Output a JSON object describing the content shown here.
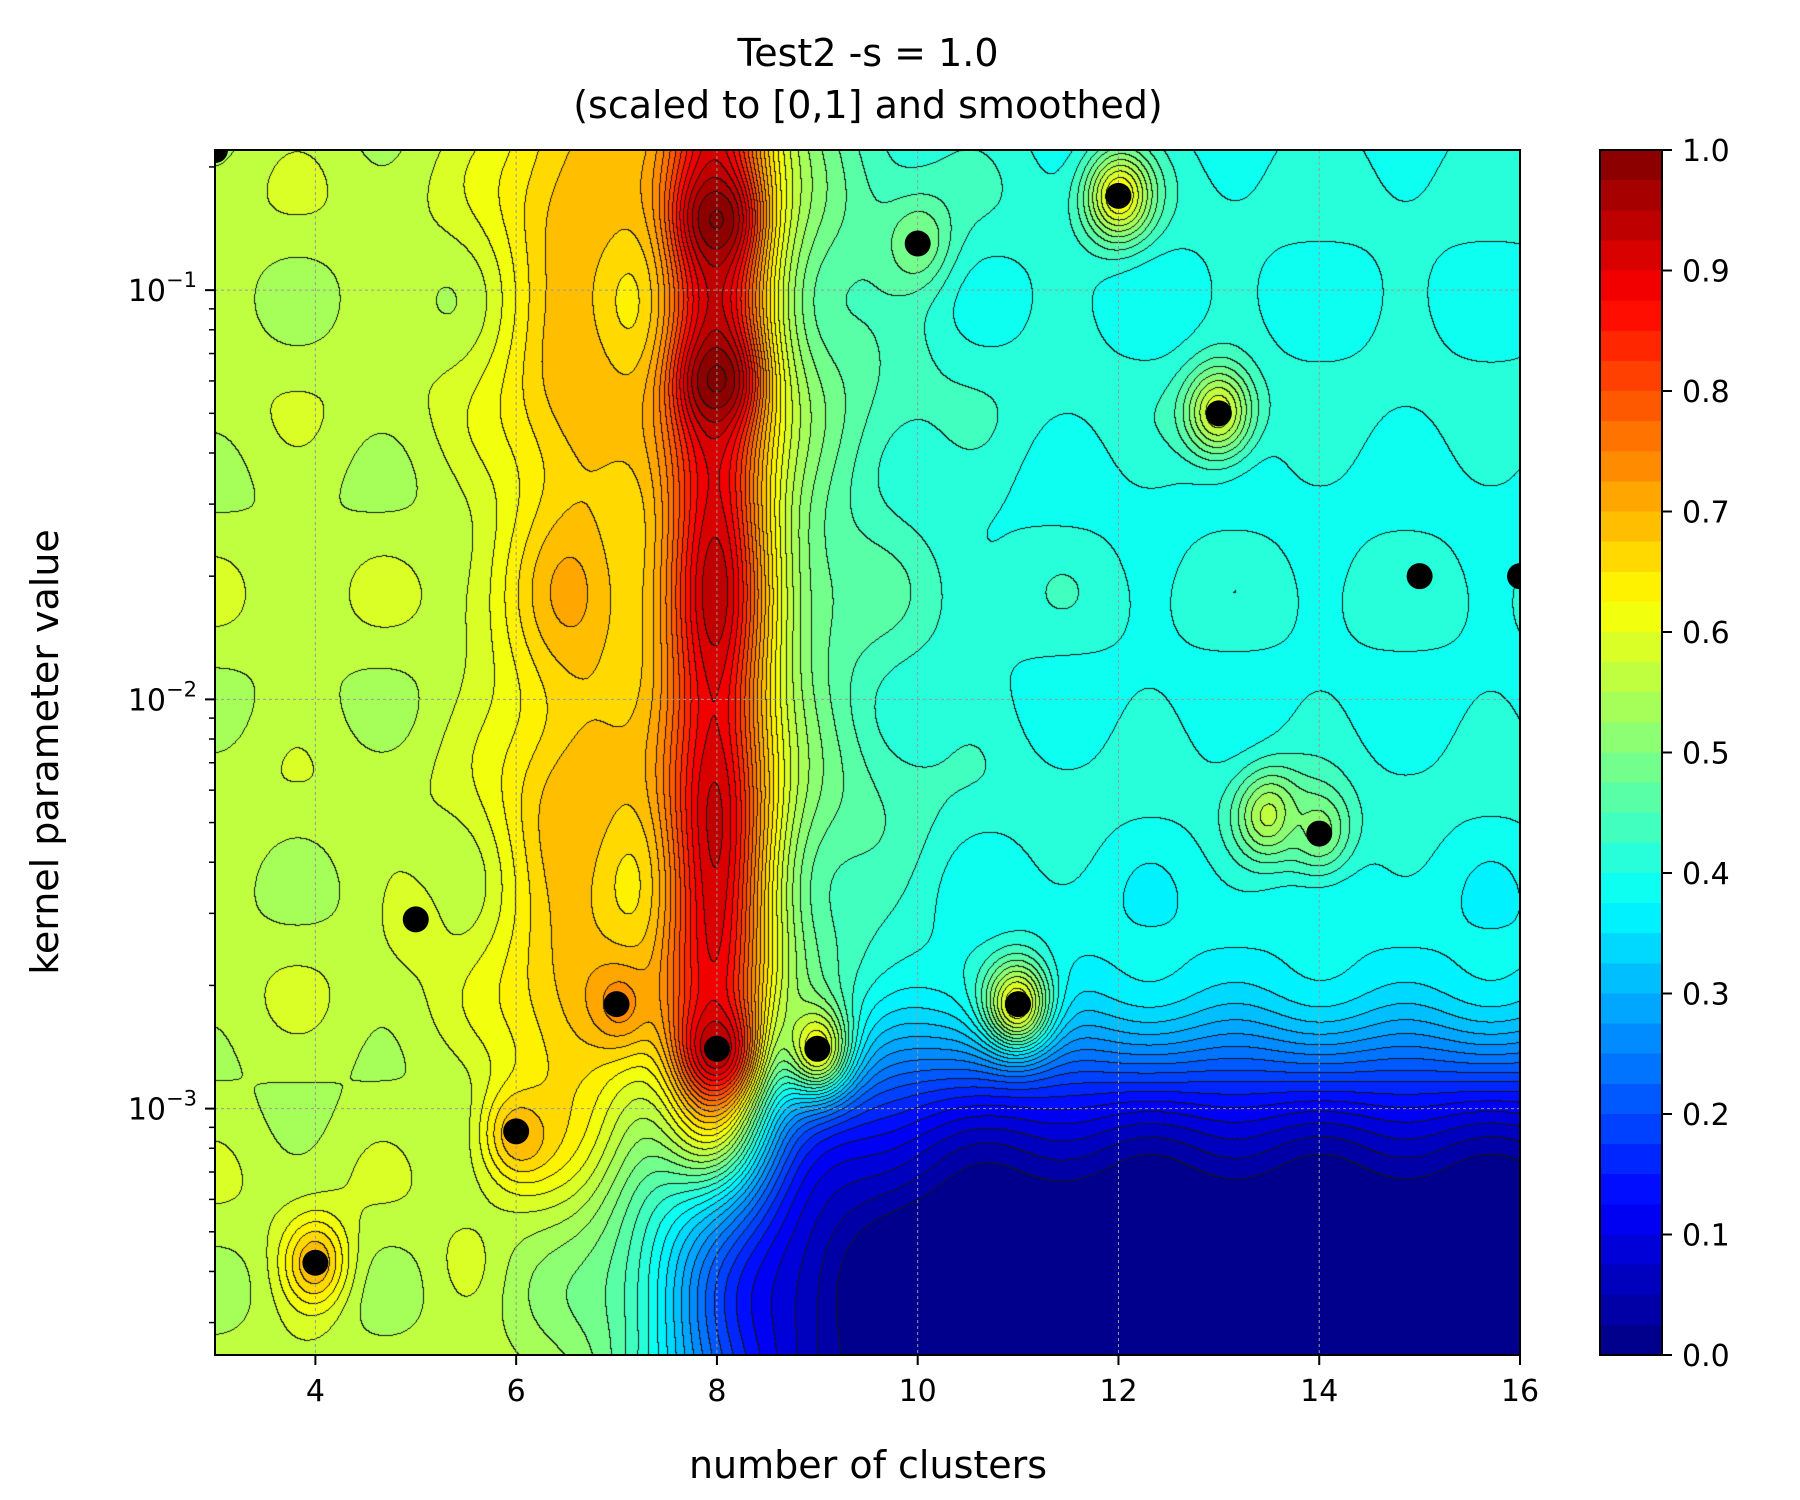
{
  "chart_data": {
    "type": "heatmap",
    "title": "Test2 -s = 1.0",
    "subtitle": "(scaled to [0,1] and smoothed)",
    "xlabel": "number of clusters",
    "ylabel": "kernel parameter value",
    "xlim": [
      3,
      16
    ],
    "ylim": [
      0.00025,
      0.22
    ],
    "y_scale": "log",
    "grid": true,
    "colormap": "jet",
    "x_ticks": [
      {
        "value": 4,
        "label": "4"
      },
      {
        "value": 6,
        "label": "6"
      },
      {
        "value": 8,
        "label": "8"
      },
      {
        "value": 10,
        "label": "10"
      },
      {
        "value": 12,
        "label": "12"
      },
      {
        "value": 14,
        "label": "14"
      },
      {
        "value": 16,
        "label": "16"
      }
    ],
    "y_ticks": [
      {
        "value": 0.1,
        "base": "10",
        "exp": "−1"
      },
      {
        "value": 0.01,
        "base": "10",
        "exp": "−2"
      },
      {
        "value": 0.001,
        "base": "10",
        "exp": "−3"
      }
    ],
    "colorbar": {
      "range": [
        0,
        1
      ],
      "ticks": [
        "0.0",
        "0.1",
        "0.2",
        "0.3",
        "0.4",
        "0.5",
        "0.6",
        "0.7",
        "0.8",
        "0.9",
        "1.0"
      ]
    },
    "peaks": [
      {
        "x": 3,
        "y": 0.22,
        "value": 0.5
      },
      {
        "x": 4,
        "y": 0.00042,
        "value": 0.7
      },
      {
        "x": 5,
        "y": 0.0029,
        "value": 0.6
      },
      {
        "x": 5.5,
        "y": 0.00042,
        "value": 0.58
      },
      {
        "x": 6,
        "y": 0.00088,
        "value": 0.7
      },
      {
        "x": 7,
        "y": 0.0018,
        "value": 0.72
      },
      {
        "x": 8,
        "y": 0.0014,
        "value": 0.97
      },
      {
        "x": 8,
        "y": 0.06,
        "value": 1.0
      },
      {
        "x": 8,
        "y": 0.15,
        "value": 1.0
      },
      {
        "x": 9,
        "y": 0.0014,
        "value": 0.62
      },
      {
        "x": 10,
        "y": 0.13,
        "value": 0.5
      },
      {
        "x": 11,
        "y": 0.0018,
        "value": 0.62
      },
      {
        "x": 12,
        "y": 0.17,
        "value": 0.62
      },
      {
        "x": 13,
        "y": 0.05,
        "value": 0.6
      },
      {
        "x": 13.5,
        "y": 0.0052,
        "value": 0.55
      },
      {
        "x": 14,
        "y": 0.0047,
        "value": 0.52
      },
      {
        "x": 15,
        "y": 0.02,
        "value": 0.4
      },
      {
        "x": 16,
        "y": 0.02,
        "value": 0.38
      }
    ],
    "markers": [
      {
        "x": 3,
        "y": 0.22
      },
      {
        "x": 4,
        "y": 0.00042
      },
      {
        "x": 5,
        "y": 0.0029
      },
      {
        "x": 6,
        "y": 0.00088
      },
      {
        "x": 7,
        "y": 0.0018
      },
      {
        "x": 8,
        "y": 0.0014
      },
      {
        "x": 9,
        "y": 0.0014
      },
      {
        "x": 10,
        "y": 0.13
      },
      {
        "x": 11,
        "y": 0.0018
      },
      {
        "x": 12,
        "y": 0.17
      },
      {
        "x": 13,
        "y": 0.05
      },
      {
        "x": 14,
        "y": 0.0047
      },
      {
        "x": 15,
        "y": 0.02
      },
      {
        "x": 16,
        "y": 0.02
      }
    ]
  }
}
